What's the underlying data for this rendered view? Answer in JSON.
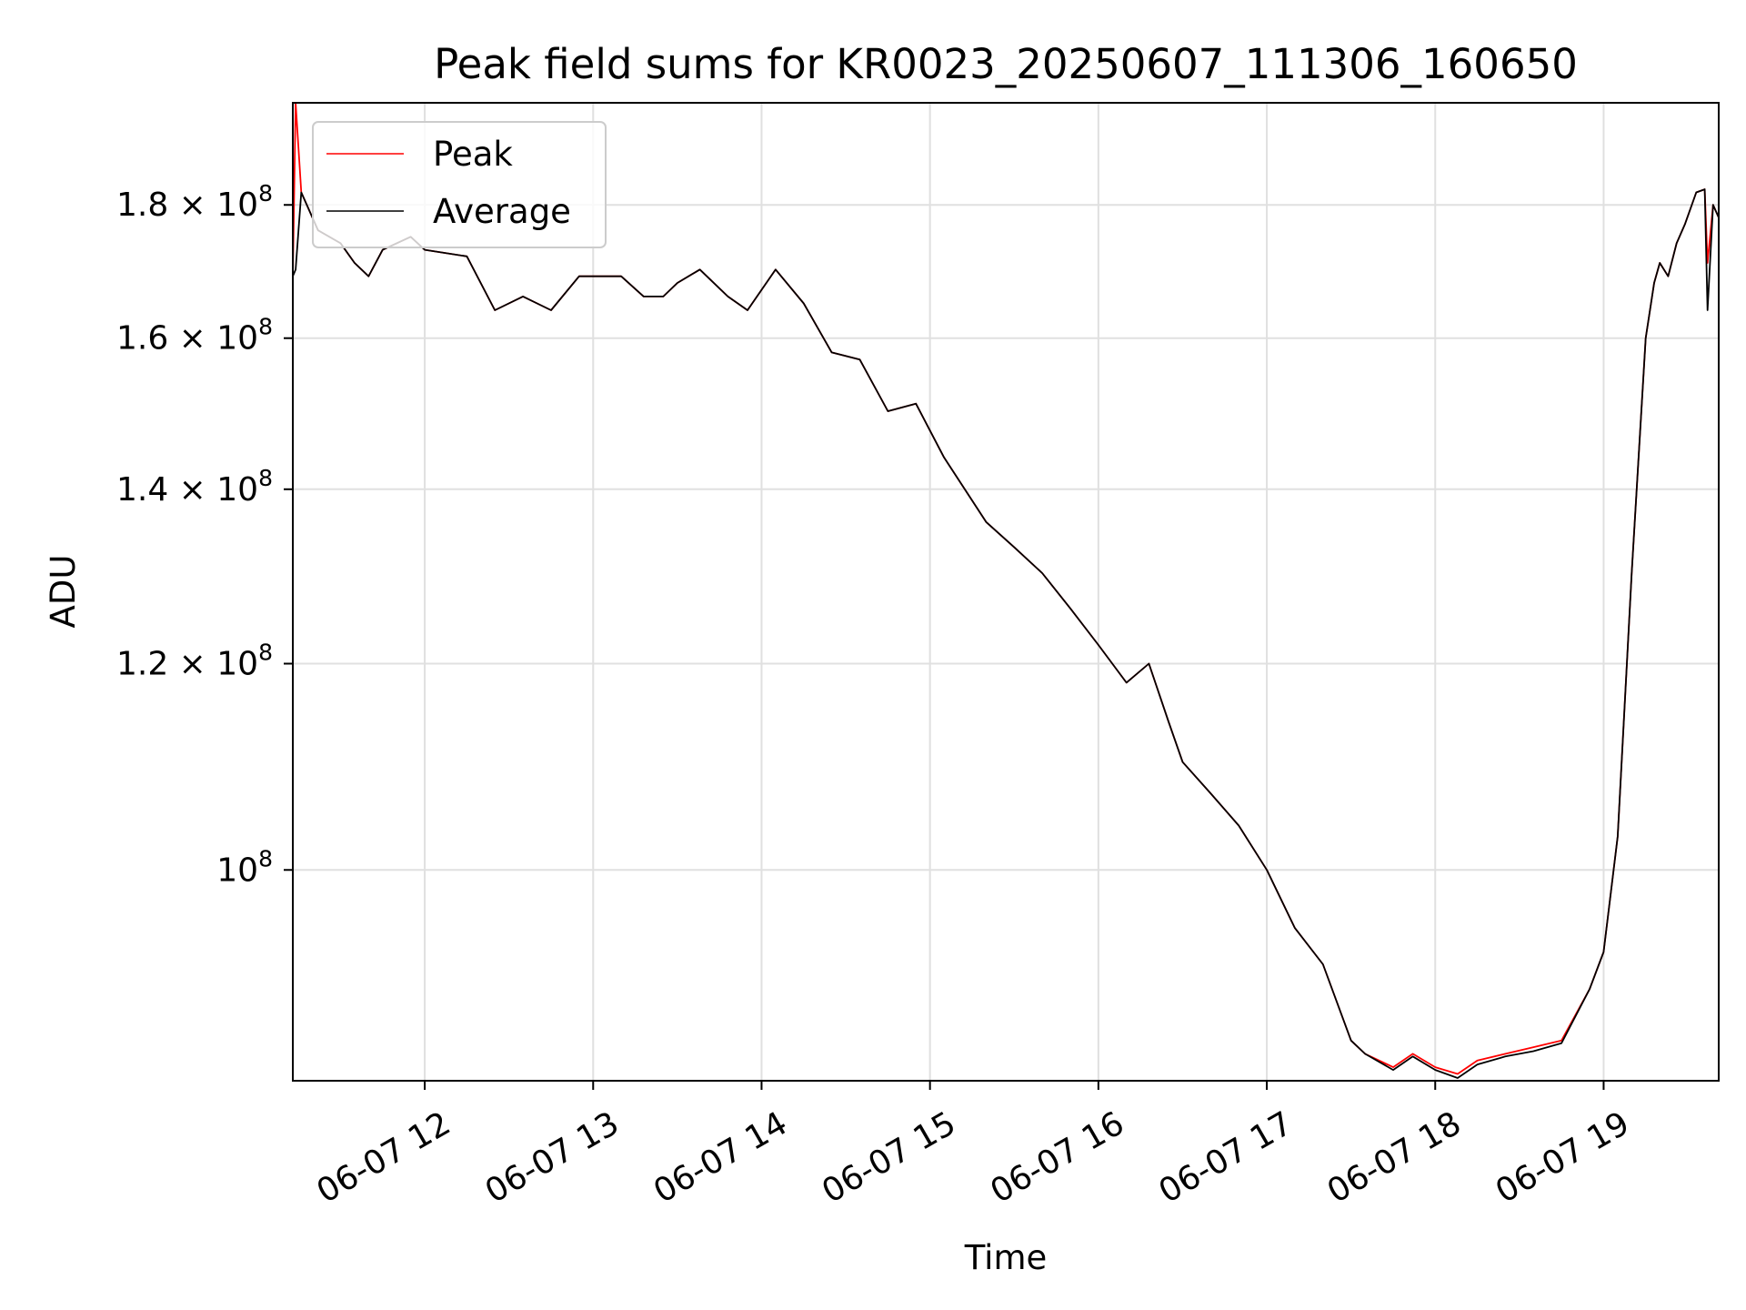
{
  "chart_data": {
    "type": "line",
    "title": "Peak field sums for KR0023_20250607_111306_160650",
    "xlabel": "Time",
    "ylabel": "ADU",
    "y_scale": "log",
    "ylim": [
      83000000,
      197000000
    ],
    "xlim": [
      "2025-06-07 11:13",
      "2025-06-07 19:41"
    ],
    "grid": true,
    "legend": {
      "placement": "top-left"
    },
    "x_ticks": [
      {
        "value": "2025-06-07 12:00",
        "label": "06-07 12"
      },
      {
        "value": "2025-06-07 13:00",
        "label": "06-07 13"
      },
      {
        "value": "2025-06-07 14:00",
        "label": "06-07 14"
      },
      {
        "value": "2025-06-07 15:00",
        "label": "06-07 15"
      },
      {
        "value": "2025-06-07 16:00",
        "label": "06-07 16"
      },
      {
        "value": "2025-06-07 17:00",
        "label": "06-07 17"
      },
      {
        "value": "2025-06-07 18:00",
        "label": "06-07 18"
      },
      {
        "value": "2025-06-07 19:00",
        "label": "06-07 19"
      }
    ],
    "y_ticks": [
      {
        "value": 100000000,
        "mantissa": "",
        "exponent": "8",
        "label": "10^8"
      },
      {
        "value": 120000000,
        "mantissa": "1.2 × 10",
        "exponent": "8",
        "label": "1.2 × 10^8"
      },
      {
        "value": 140000000,
        "mantissa": "1.4 × 10",
        "exponent": "8",
        "label": "1.4 × 10^8"
      },
      {
        "value": 160000000,
        "mantissa": "1.6 × 10",
        "exponent": "8",
        "label": "1.6 × 10^8"
      },
      {
        "value": 180000000,
        "mantissa": "1.8 × 10",
        "exponent": "8",
        "label": "1.8 × 10^8"
      }
    ],
    "x": [
      "2025-06-07 11:13",
      "2025-06-07 11:14",
      "2025-06-07 11:16",
      "2025-06-07 11:22",
      "2025-06-07 11:30",
      "2025-06-07 11:35",
      "2025-06-07 11:40",
      "2025-06-07 11:45",
      "2025-06-07 11:55",
      "2025-06-07 12:00",
      "2025-06-07 12:15",
      "2025-06-07 12:25",
      "2025-06-07 12:35",
      "2025-06-07 12:45",
      "2025-06-07 12:55",
      "2025-06-07 13:10",
      "2025-06-07 13:18",
      "2025-06-07 13:25",
      "2025-06-07 13:30",
      "2025-06-07 13:38",
      "2025-06-07 13:48",
      "2025-06-07 13:55",
      "2025-06-07 14:05",
      "2025-06-07 14:15",
      "2025-06-07 14:25",
      "2025-06-07 14:35",
      "2025-06-07 14:45",
      "2025-06-07 14:55",
      "2025-06-07 15:05",
      "2025-06-07 15:20",
      "2025-06-07 15:30",
      "2025-06-07 15:40",
      "2025-06-07 15:50",
      "2025-06-07 16:00",
      "2025-06-07 16:10",
      "2025-06-07 16:18",
      "2025-06-07 16:25",
      "2025-06-07 16:30",
      "2025-06-07 16:40",
      "2025-06-07 16:50",
      "2025-06-07 17:00",
      "2025-06-07 17:10",
      "2025-06-07 17:20",
      "2025-06-07 17:30",
      "2025-06-07 17:35",
      "2025-06-07 17:45",
      "2025-06-07 17:52",
      "2025-06-07 18:00",
      "2025-06-07 18:08",
      "2025-06-07 18:15",
      "2025-06-07 18:25",
      "2025-06-07 18:35",
      "2025-06-07 18:45",
      "2025-06-07 18:55",
      "2025-06-07 19:00",
      "2025-06-07 19:05",
      "2025-06-07 19:10",
      "2025-06-07 19:15",
      "2025-06-07 19:18",
      "2025-06-07 19:20",
      "2025-06-07 19:23",
      "2025-06-07 19:26",
      "2025-06-07 19:29",
      "2025-06-07 19:33",
      "2025-06-07 19:36",
      "2025-06-07 19:37",
      "2025-06-07 19:39",
      "2025-06-07 19:41"
    ],
    "series": [
      {
        "name": "Peak",
        "color": "#ff0000",
        "values": [
          169000000,
          197000000,
          182000000,
          176000000,
          174000000,
          171000000,
          169000000,
          173000000,
          175000000,
          173000000,
          172000000,
          164000000,
          166000000,
          164000000,
          169000000,
          169000000,
          166000000,
          166000000,
          168000000,
          170000000,
          166000000,
          164000000,
          170000000,
          165000000,
          158000000,
          157000000,
          150000000,
          151000000,
          144000000,
          136000000,
          133000000,
          130000000,
          126000000,
          122000000,
          118000000,
          120000000,
          114000000,
          110000000,
          107000000,
          104000000,
          100000000,
          95000000,
          92000000,
          86000000,
          85000000,
          84000000,
          85000000,
          84000000,
          83500000,
          84500000,
          85000000,
          85500000,
          86000000,
          90000000,
          93000000,
          103000000,
          130000000,
          160000000,
          168000000,
          171000000,
          169000000,
          174000000,
          177000000,
          182000000,
          182500000,
          171000000,
          180000000,
          178000000
        ]
      },
      {
        "name": "Average",
        "color": "#000000",
        "values": [
          169000000,
          170000000,
          182000000,
          176000000,
          174000000,
          171000000,
          169000000,
          173000000,
          175000000,
          173000000,
          172000000,
          164000000,
          166000000,
          164000000,
          169000000,
          169000000,
          166000000,
          166000000,
          168000000,
          170000000,
          166000000,
          164000000,
          170000000,
          165000000,
          158000000,
          157000000,
          150000000,
          151000000,
          144000000,
          136000000,
          133000000,
          130000000,
          126000000,
          122000000,
          118000000,
          120000000,
          114000000,
          110000000,
          107000000,
          104000000,
          100000000,
          95000000,
          92000000,
          86000000,
          85000000,
          83800000,
          84800000,
          83800000,
          83200000,
          84200000,
          84800000,
          85200000,
          85800000,
          90000000,
          93000000,
          103000000,
          130000000,
          160000000,
          168000000,
          171000000,
          169000000,
          174000000,
          177000000,
          182000000,
          182500000,
          164000000,
          180000000,
          178000000
        ]
      }
    ]
  }
}
